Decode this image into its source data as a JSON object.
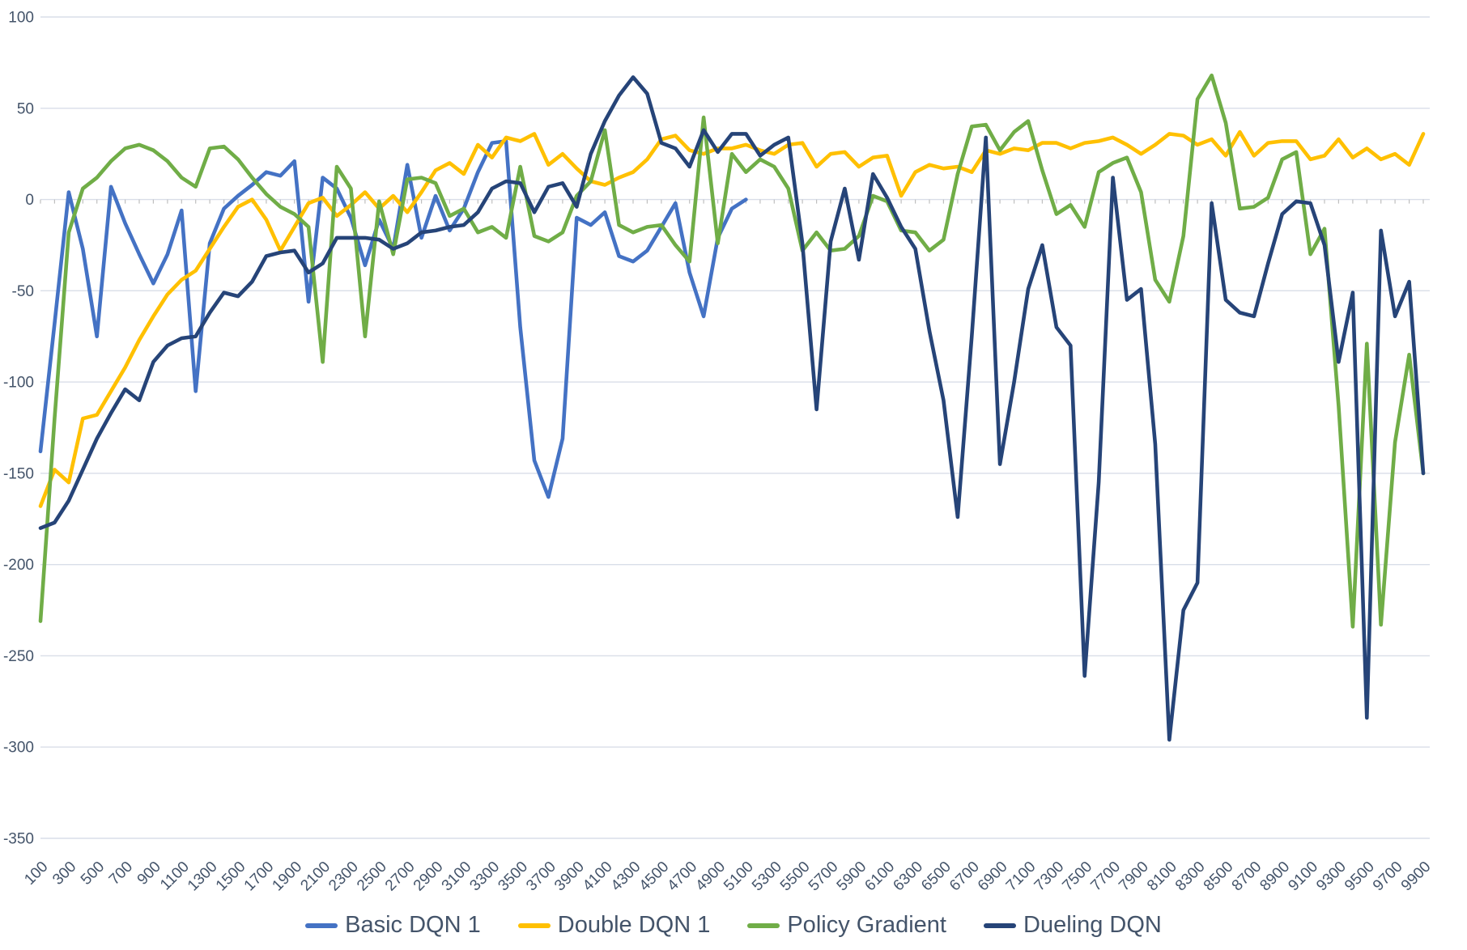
{
  "chart_data": {
    "type": "line",
    "title": "",
    "xlabel": "",
    "ylabel": "",
    "x_start": 100,
    "x_step": 100,
    "x_end": 9900,
    "ylim": [
      -350,
      100
    ],
    "yticks": [
      100,
      50,
      0,
      -50,
      -100,
      -150,
      -200,
      -250,
      -300,
      -350
    ],
    "x_tick_labels": [
      100,
      300,
      500,
      700,
      900,
      1100,
      1300,
      1500,
      1700,
      1900,
      2100,
      2300,
      2500,
      2700,
      2900,
      3100,
      3300,
      3500,
      3700,
      3900,
      4100,
      4300,
      4500,
      4700,
      4900,
      5100,
      5300,
      5500,
      5700,
      5900,
      6100,
      6300,
      6500,
      6700,
      6900,
      7100,
      7300,
      7500,
      7700,
      7900,
      8100,
      8300,
      8500,
      8700,
      8900,
      9100,
      9300,
      9500,
      9700,
      9900
    ],
    "grid": true,
    "legend_position": "bottom",
    "series": [
      {
        "name": "Basic DQN 1",
        "color": "#4472C4",
        "x_start": 100,
        "values": [
          -138,
          -68,
          4,
          -27,
          -75,
          7,
          -13,
          -30,
          -46,
          -30,
          -6,
          -105,
          -24,
          -5,
          2,
          8,
          15,
          13,
          21,
          -56,
          12,
          6,
          -10,
          -36,
          -11,
          -27,
          19,
          -21,
          2,
          -17,
          -5,
          15,
          31,
          32,
          -70,
          -143,
          -163,
          -131,
          -10,
          -14,
          -7,
          -31,
          -34,
          -28,
          -15,
          -2,
          -40,
          -64,
          -21,
          -5,
          0
        ]
      },
      {
        "name": "Double DQN 1",
        "color": "#FFC000",
        "x_start": 100,
        "values": [
          -168,
          -148,
          -155,
          -120,
          -118,
          -105,
          -92,
          -77,
          -64,
          -52,
          -44,
          -39,
          -27,
          -15,
          -4,
          0,
          -11,
          -28,
          -15,
          -2,
          1,
          -9,
          -3,
          4,
          -5,
          2,
          -7,
          4,
          16,
          20,
          14,
          30,
          23,
          34,
          32,
          36,
          19,
          25,
          17,
          10,
          8,
          12,
          15,
          22,
          33,
          35,
          27,
          25,
          28,
          28,
          30,
          27,
          25,
          30,
          31,
          18,
          25,
          26,
          18,
          23,
          24,
          2,
          15,
          19,
          17,
          18,
          15,
          27,
          25,
          28,
          27,
          31,
          31,
          28,
          31,
          32,
          34,
          30,
          25,
          30,
          36,
          35,
          30,
          33,
          24,
          37,
          24,
          31,
          32,
          32,
          22,
          24,
          33,
          23,
          28,
          22,
          25,
          19,
          36
        ]
      },
      {
        "name": "Policy Gradient",
        "color": "#70AD47",
        "x_start": 100,
        "values": [
          -231,
          -120,
          -18,
          6,
          12,
          21,
          28,
          30,
          27,
          21,
          12,
          7,
          28,
          29,
          22,
          12,
          3,
          -4,
          -8,
          -15,
          -89,
          18,
          6,
          -75,
          -1,
          -30,
          11,
          12,
          9,
          -9,
          -5,
          -18,
          -15,
          -21,
          18,
          -20,
          -23,
          -18,
          2,
          10,
          38,
          -14,
          -18,
          -15,
          -14,
          -25,
          -34,
          45,
          -24,
          25,
          15,
          22,
          18,
          6,
          -28,
          -18,
          -28,
          -27,
          -20,
          2,
          -1,
          -17,
          -18,
          -28,
          -22,
          14,
          40,
          41,
          27,
          37,
          43,
          16,
          -8,
          -3,
          -15,
          15,
          20,
          23,
          4,
          -44,
          -56,
          -20,
          55,
          68,
          42,
          -5,
          -4,
          1,
          22,
          26,
          -30,
          -16,
          -113,
          -234,
          -79,
          -233,
          -133,
          -85,
          -150
        ]
      },
      {
        "name": "Dueling DQN",
        "color": "#264478",
        "x_start": 100,
        "values": [
          -180,
          -177,
          -165,
          -148,
          -131,
          -117,
          -104,
          -110,
          -89,
          -80,
          -76,
          -75,
          -62,
          -51,
          -53,
          -45,
          -31,
          -29,
          -28,
          -40,
          -35,
          -21,
          -21,
          -21,
          -22,
          -27,
          -24,
          -18,
          -17,
          -15,
          -14,
          -7,
          6,
          10,
          9,
          -7,
          7,
          9,
          -4,
          25,
          43,
          57,
          67,
          58,
          31,
          28,
          18,
          38,
          26,
          36,
          36,
          24,
          30,
          34,
          -24,
          -115,
          -23,
          6,
          -33,
          14,
          1,
          -15,
          -27,
          -72,
          -110,
          -174,
          -75,
          34,
          -145,
          -100,
          -49,
          -25,
          -70,
          -80,
          -261,
          -155,
          12,
          -55,
          -49,
          -134,
          -296,
          -225,
          -210,
          -2,
          -55,
          -62,
          -64,
          -35,
          -8,
          -1,
          -2,
          -25,
          -89,
          -51,
          -284,
          -17,
          -64,
          -45,
          -150
        ]
      }
    ],
    "colors": {
      "gridline": "#D9DEE8",
      "tick": "#BFBFBF",
      "axis_label": "#44546A",
      "legend_text": "#44546A",
      "background": "#FFFFFF"
    }
  }
}
